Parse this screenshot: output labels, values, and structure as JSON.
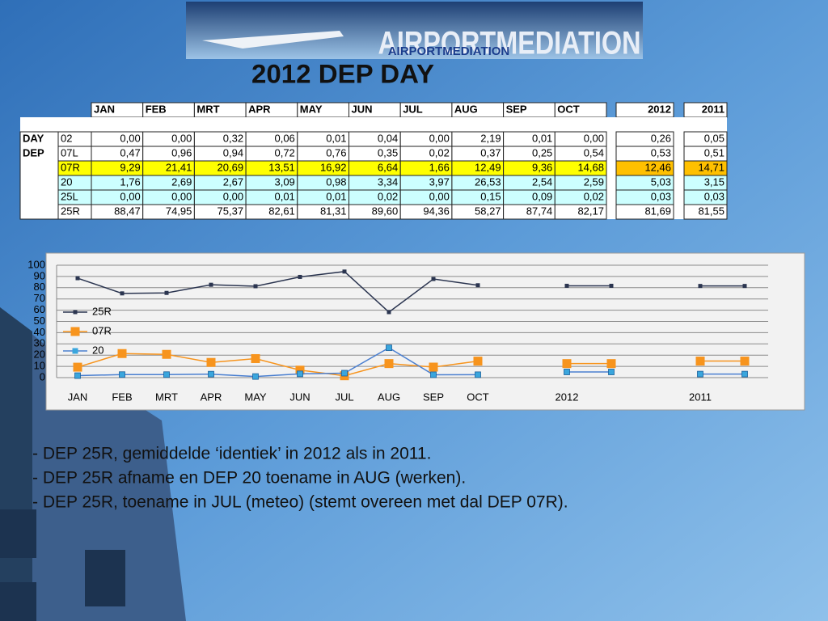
{
  "header": {
    "logo": "AIRPORTMEDIATION",
    "title": "2012 DEP DAY"
  },
  "table": {
    "columns": [
      "JAN",
      "FEB",
      "MRT",
      "APR",
      "MAY",
      "JUN",
      "JUL",
      "AUG",
      "SEP",
      "OCT"
    ],
    "total_columns": [
      "2012",
      "2011"
    ],
    "rows": [
      {
        "group": "DAY",
        "runway": "02",
        "values": [
          "0,00",
          "0,00",
          "0,32",
          "0,06",
          "0,01",
          "0,04",
          "0,00",
          "2,19",
          "0,01",
          "0,00"
        ],
        "totals": [
          "0,26",
          "0,05"
        ]
      },
      {
        "group": "DEP",
        "runway": "07L",
        "values": [
          "0,47",
          "0,96",
          "0,94",
          "0,72",
          "0,76",
          "0,35",
          "0,02",
          "0,37",
          "0,25",
          "0,54"
        ],
        "totals": [
          "0,53",
          "0,51"
        ]
      },
      {
        "runway": "07R",
        "values": [
          "9,29",
          "21,41",
          "20,69",
          "13,51",
          "16,92",
          "6,64",
          "1,66",
          "12,49",
          "9,36",
          "14,68"
        ],
        "totals": [
          "12,46",
          "14,71"
        ]
      },
      {
        "runway": "20",
        "values": [
          "1,76",
          "2,69",
          "2,67",
          "3,09",
          "0,98",
          "3,34",
          "3,97",
          "26,53",
          "2,54",
          "2,59"
        ],
        "totals": [
          "5,03",
          "3,15"
        ]
      },
      {
        "runway": "25L",
        "values": [
          "0,00",
          "0,00",
          "0,00",
          "0,01",
          "0,01",
          "0,02",
          "0,00",
          "0,15",
          "0,09",
          "0,02"
        ],
        "totals": [
          "0,03",
          "0,03"
        ]
      },
      {
        "runway": "25R",
        "values": [
          "88,47",
          "74,95",
          "75,37",
          "82,61",
          "81,31",
          "89,60",
          "94,36",
          "58,27",
          "87,74",
          "82,17"
        ],
        "totals": [
          "81,69",
          "81,55"
        ]
      }
    ]
  },
  "chart_data": {
    "type": "line",
    "categories": [
      "JAN",
      "FEB",
      "MRT",
      "APR",
      "MAY",
      "JUN",
      "JUL",
      "AUG",
      "SEP",
      "OCT",
      null,
      "2012",
      null,
      null,
      "2011",
      null
    ],
    "series": [
      {
        "name": "25R",
        "color": "#2b3550",
        "values": [
          88.47,
          74.95,
          75.37,
          82.61,
          81.31,
          89.6,
          94.36,
          58.27,
          87.74,
          82.17,
          null,
          81.69,
          81.69,
          null,
          81.55,
          81.55
        ]
      },
      {
        "name": "07R",
        "color": "#f7941d",
        "values": [
          9.29,
          21.41,
          20.69,
          13.51,
          16.92,
          6.64,
          1.66,
          12.49,
          9.36,
          14.68,
          null,
          12.46,
          12.46,
          null,
          14.71,
          14.71
        ]
      },
      {
        "name": "20",
        "color": "#3aa6dd",
        "values": [
          1.76,
          2.69,
          2.67,
          3.09,
          0.98,
          3.34,
          3.97,
          26.53,
          2.54,
          2.59,
          null,
          5.03,
          5.03,
          null,
          3.15,
          3.15
        ]
      }
    ],
    "ylim": [
      0,
      100
    ],
    "yticks": [
      0,
      10,
      20,
      30,
      40,
      50,
      60,
      70,
      80,
      90,
      100
    ],
    "grid": true,
    "legend": "left"
  },
  "notes": [
    "- DEP 25R, gemiddelde ‘identiek’ in 2012 als in 2011.",
    "- DEP 25R afname en DEP 20 toename in AUG (werken).",
    "- DEP 25R, toename in JUL (meteo) (stemt overeen met dal DEP 07R)."
  ]
}
